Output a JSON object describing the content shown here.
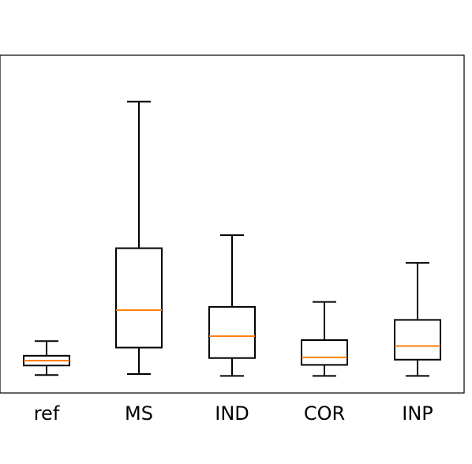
{
  "chart_data": {
    "type": "box",
    "title": "",
    "xlabel": "",
    "ylabel": "",
    "categories": [
      "ref",
      "MS",
      "IND",
      "COR",
      "INP"
    ],
    "y_axis_visible": false,
    "ylim": [
      0,
      100
    ],
    "grid": false,
    "legend": "none",
    "boxes": [
      {
        "label": "ref",
        "whislo": 3.1,
        "q1": 6.0,
        "med": 7.5,
        "q3": 9.0,
        "whishi": 13.5
      },
      {
        "label": "MS",
        "whislo": 3.4,
        "q1": 11.5,
        "med": 23.0,
        "q3": 42.0,
        "whishi": 87.0
      },
      {
        "label": "IND",
        "whislo": 2.8,
        "q1": 8.3,
        "med": 15.0,
        "q3": 24.0,
        "whishi": 46.0
      },
      {
        "label": "COR",
        "whislo": 2.8,
        "q1": 6.2,
        "med": 8.5,
        "q3": 13.8,
        "whishi": 25.5
      },
      {
        "label": "INP",
        "whislo": 2.8,
        "q1": 7.8,
        "med": 12.0,
        "q3": 20.0,
        "whishi": 37.5
      }
    ],
    "colors": {
      "box": "#000000",
      "median": "#ff7f0e",
      "frame": "#000000",
      "background": "#ffffff"
    }
  }
}
